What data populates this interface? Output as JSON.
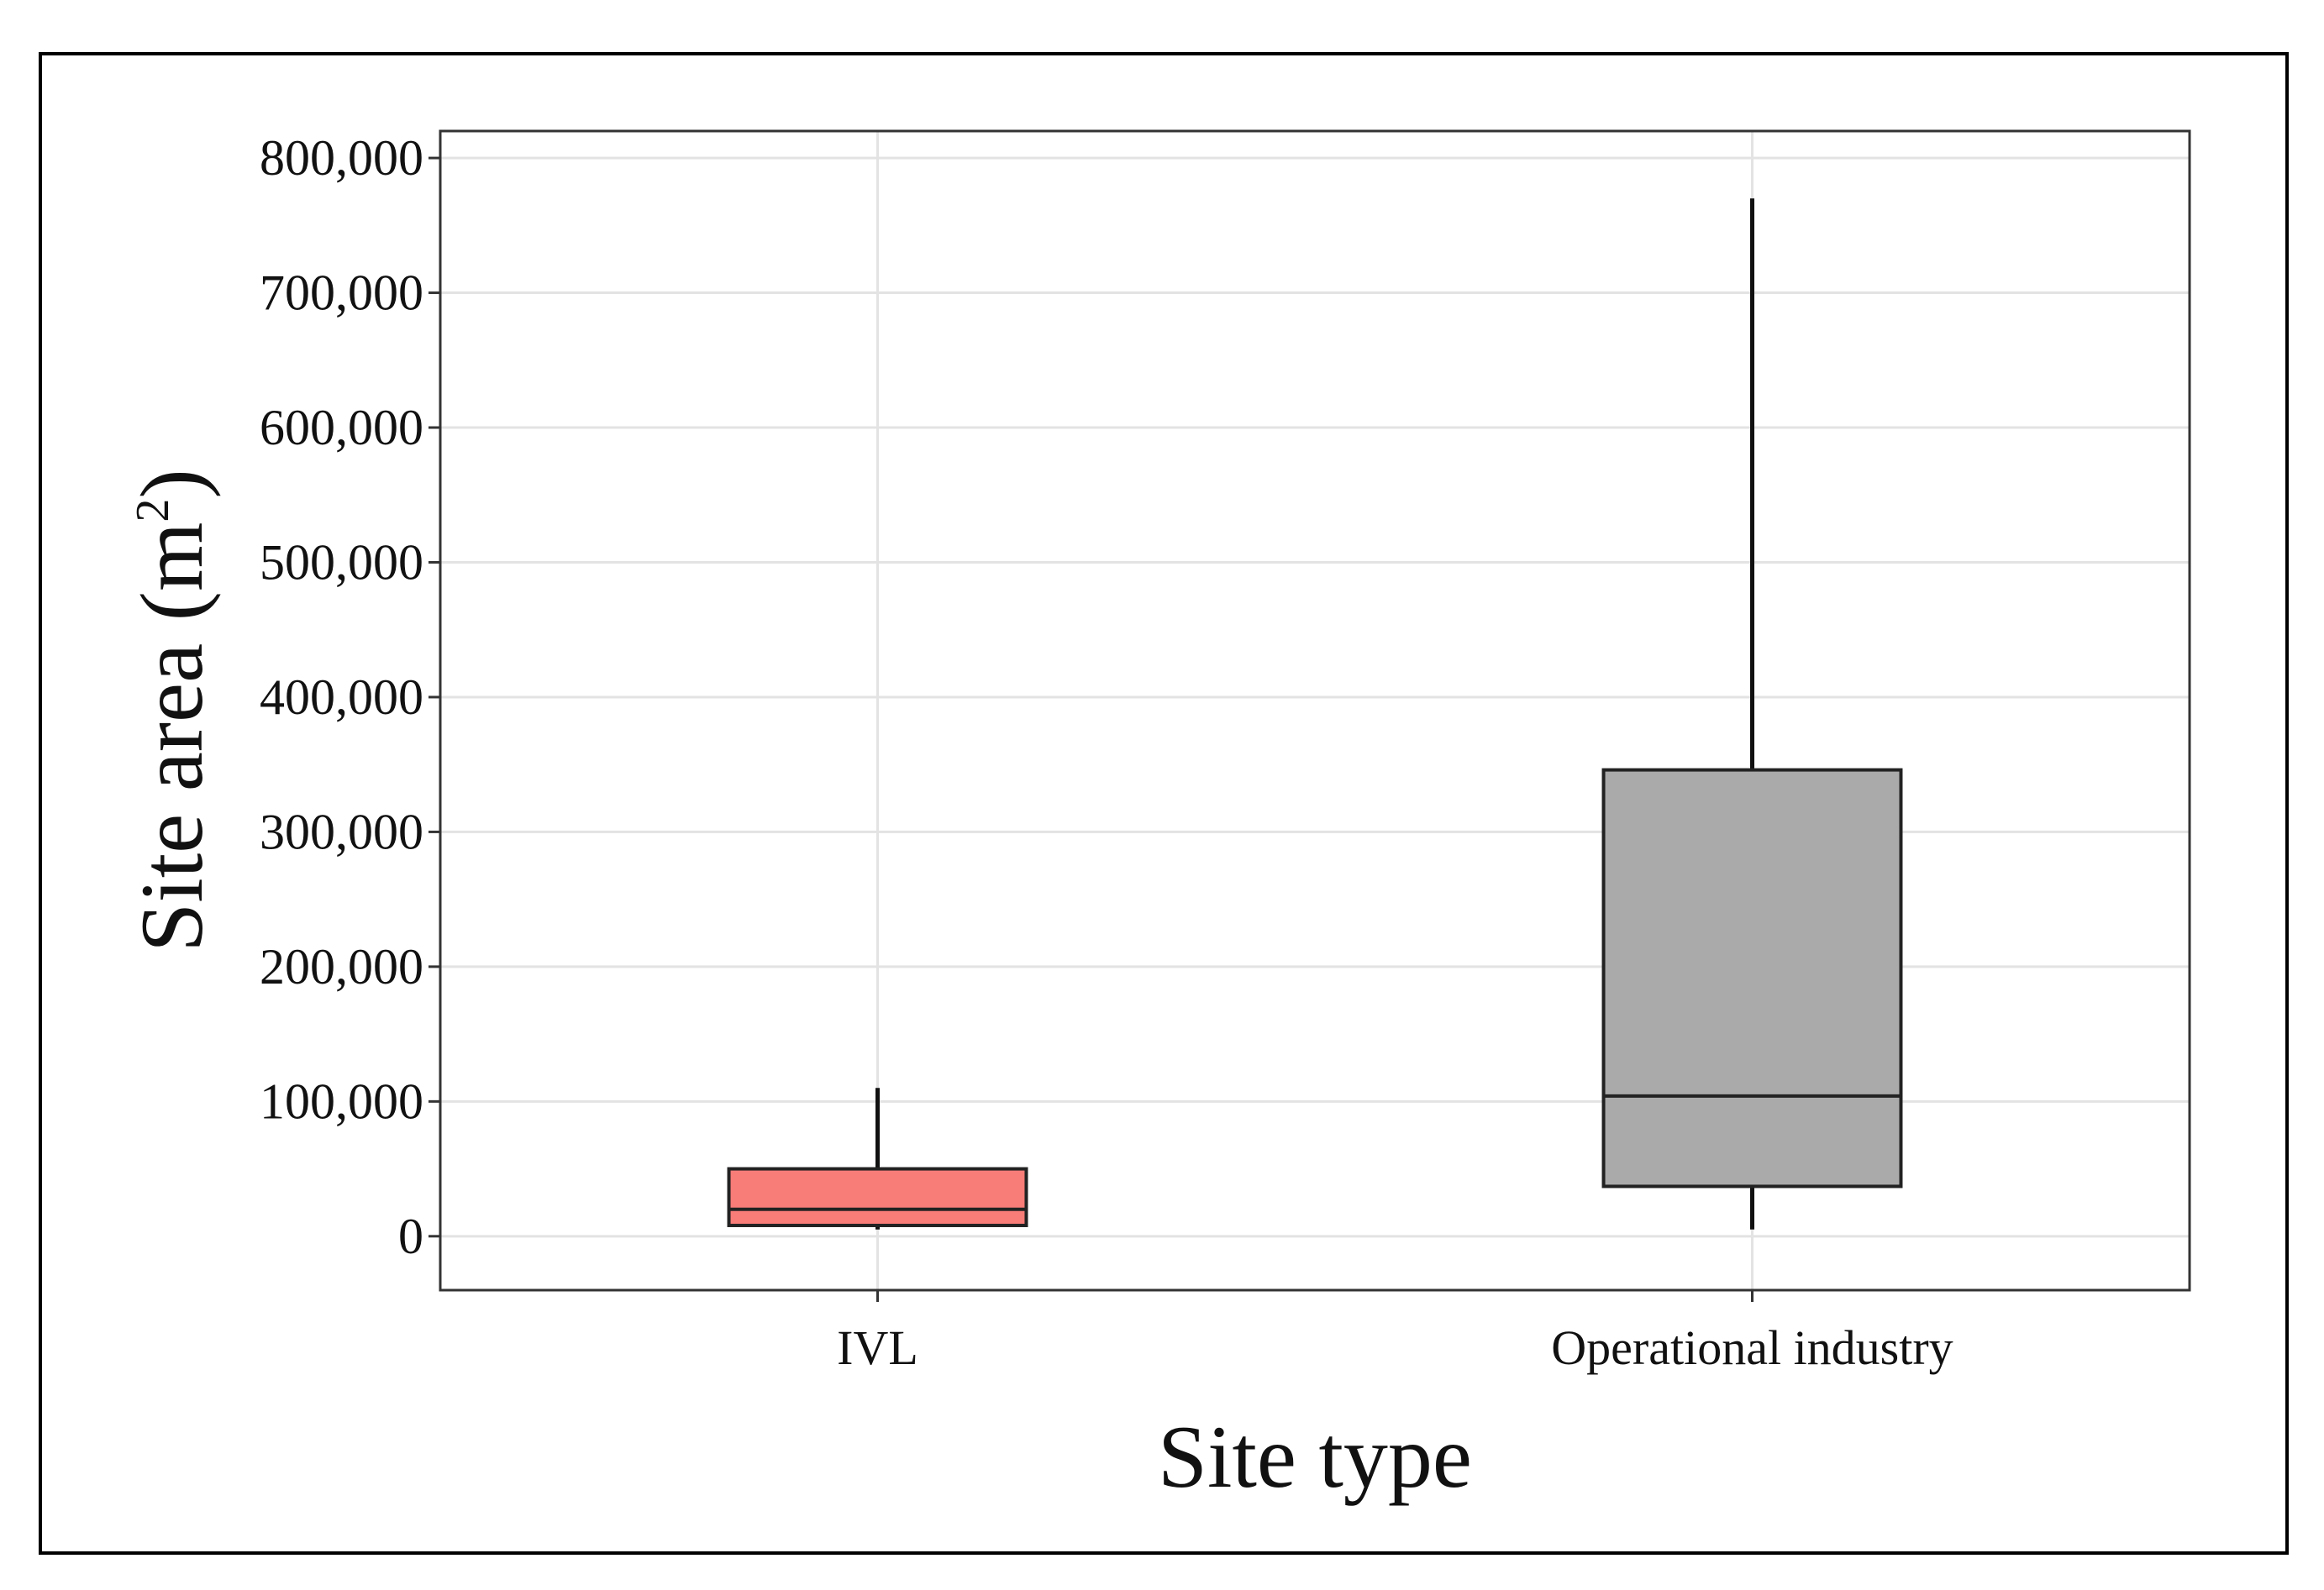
{
  "chart_data": {
    "type": "box",
    "title": "",
    "xlabel": "Site type",
    "ylabel": {
      "base": "Site area (m",
      "sup": "2",
      "close": ")"
    },
    "ylim": [
      -40000,
      820000
    ],
    "yticks": [
      0,
      100000,
      200000,
      300000,
      400000,
      500000,
      600000,
      700000,
      800000
    ],
    "ytick_labels": [
      "0",
      "100,000",
      "200,000",
      "300,000",
      "400,000",
      "500,000",
      "600,000",
      "700,000",
      "800,000"
    ],
    "grid": true,
    "legend": "none",
    "categories": [
      "IVL",
      "Operational industry"
    ],
    "boxes": [
      {
        "category": "IVL",
        "min": 5000,
        "q1": 8000,
        "median": 20000,
        "q3": 50000,
        "max": 110000,
        "color": "#f87c78"
      },
      {
        "category": "Operational industry",
        "min": 5000,
        "q1": 37000,
        "median": 104000,
        "q3": 346000,
        "max": 770000,
        "color": "#aaaaaa"
      }
    ]
  }
}
